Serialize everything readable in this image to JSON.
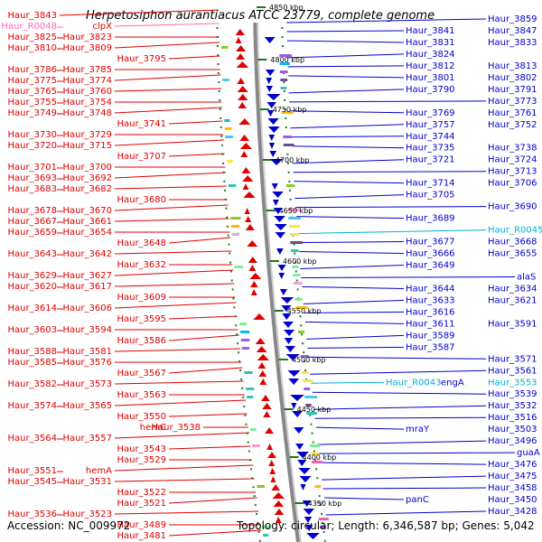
{
  "title": "Herpetosiphon aurantiacus ATCC 23779, complete genome",
  "footer": {
    "accession": "Accession: NC_009972",
    "summary": "Topology: circular; Length: 6,346,587 bp; Genes: 5,042"
  },
  "colors": {
    "left_strand": "#e00000",
    "right_strand": "#0000cc",
    "rna": "#ff69b4",
    "rna_right": "#00b0d8",
    "backbone": "#888888",
    "kbp_tick": "#1a7a1a"
  },
  "kbp_ticks": [
    "4850 kbp",
    "4800 kbp",
    "4750 kbp",
    "4700 kbp",
    "4650 kbp",
    "4600 kbp",
    "4550 kbp",
    "4500 kbp",
    "4450 kbp",
    "4400 kbp",
    "4350 kbp"
  ],
  "left_labels": [
    {
      "outer": "Haur_3843"
    },
    {
      "outer": "Haur_R0048",
      "inner": "clpX",
      "rna": true
    },
    {
      "outer": "Haur_3825",
      "inner": "Haur_3823"
    },
    {
      "outer": "Haur_3810",
      "inner": "Haur_3809"
    },
    {
      "inner": "Haur_3795"
    },
    {
      "outer": "Haur_3786",
      "inner": "Haur_3785"
    },
    {
      "outer": "Haur_3775",
      "inner": "Haur_3774"
    },
    {
      "outer": "Haur_3765",
      "inner": "Haur_3760"
    },
    {
      "outer": "Haur_3755",
      "inner": "Haur_3754"
    },
    {
      "outer": "Haur_3749",
      "inner": "Haur_3748"
    },
    {
      "inner": "Haur_3741"
    },
    {
      "outer": "Haur_3730",
      "inner": "Haur_3729"
    },
    {
      "outer": "Haur_3720",
      "inner": "Haur_3715"
    },
    {
      "inner": "Haur_3707"
    },
    {
      "outer": "Haur_3701",
      "inner": "Haur_3700"
    },
    {
      "outer": "Haur_3693",
      "inner": "Haur_3692"
    },
    {
      "outer": "Haur_3683",
      "inner": "Haur_3682"
    },
    {
      "inner": "Haur_3680"
    },
    {
      "outer": "Haur_3678",
      "inner": "Haur_3670"
    },
    {
      "outer": "Haur_3667",
      "inner": "Haur_3661"
    },
    {
      "outer": "Haur_3659",
      "inner": "Haur_3654"
    },
    {
      "inner": "Haur_3648"
    },
    {
      "outer": "Haur_3643",
      "inner": "Haur_3642"
    },
    {
      "inner": "Haur_3632"
    },
    {
      "outer": "Haur_3629",
      "inner": "Haur_3627"
    },
    {
      "outer": "Haur_3620",
      "inner": "Haur_3617"
    },
    {
      "inner": "Haur_3609"
    },
    {
      "outer": "Haur_3614",
      "inner": "Haur_3606"
    },
    {
      "inner": "Haur_3595"
    },
    {
      "outer": "Haur_3603",
      "inner": "Haur_3594"
    },
    {
      "inner": "Haur_3586"
    },
    {
      "outer": "Haur_3588",
      "inner": "Haur_3581"
    },
    {
      "outer": "Haur_3585",
      "inner": "Haur_3576"
    },
    {
      "inner": "Haur_3567"
    },
    {
      "outer": "Haur_3582",
      "inner": "Haur_3573"
    },
    {
      "inner": "Haur_3563"
    },
    {
      "outer": "Haur_3574",
      "inner": "Haur_3565"
    },
    {
      "inner": "Haur_3550"
    },
    {
      "inner": "hemC",
      "inner2": "Haur_3538"
    },
    {
      "outer": "Haur_3564",
      "inner": "Haur_3557"
    },
    {
      "inner": "Haur_3543"
    },
    {
      "inner": "Haur_3529"
    },
    {
      "outer": "Haur_3551",
      "inner": "hemA"
    },
    {
      "outer": "Haur_3545",
      "inner": "Haur_3531"
    },
    {
      "inner": "Haur_3522"
    },
    {
      "inner": "Haur_3521"
    },
    {
      "outer": "Haur_3536",
      "inner": "Haur_3523"
    },
    {
      "inner": "Haur_3489"
    },
    {
      "inner": "Haur_3481"
    }
  ],
  "right_labels": [
    {
      "outer": "Haur_3859"
    },
    {
      "inner": "Haur_3841",
      "outer": "Haur_3847"
    },
    {
      "inner": "Haur_3831",
      "outer": "Haur_3833"
    },
    {
      "inner": "Haur_3824"
    },
    {
      "inner": "Haur_3812",
      "outer": "Haur_3813"
    },
    {
      "inner": "Haur_3801",
      "outer": "Haur_3802"
    },
    {
      "inner": "Haur_3790",
      "outer": "Haur_3791"
    },
    {
      "outer": "Haur_3773"
    },
    {
      "inner": "Haur_3769",
      "outer": "Haur_3761"
    },
    {
      "inner": "Haur_3757",
      "outer": "Haur_3752"
    },
    {
      "inner": "Haur_3744"
    },
    {
      "inner": "Haur_3735",
      "outer": "Haur_3738"
    },
    {
      "inner": "Haur_3721",
      "outer": "Haur_3724"
    },
    {
      "outer": "Haur_3713"
    },
    {
      "inner": "Haur_3714",
      "outer": "Haur_3706"
    },
    {
      "inner": "Haur_3705"
    },
    {
      "outer": "Haur_3690"
    },
    {
      "inner": "Haur_3689"
    },
    {
      "outer": "Haur_R0045",
      "rna": true
    },
    {
      "inner": "Haur_3677",
      "outer": "Haur_3668"
    },
    {
      "inner": "Haur_3666",
      "outer": "Haur_3655"
    },
    {
      "inner": "Haur_3649"
    },
    {
      "outer": "alaS"
    },
    {
      "inner": "Haur_3644",
      "outer": "Haur_3634"
    },
    {
      "inner": "Haur_3633",
      "outer": "Haur_3621"
    },
    {
      "inner": "Haur_3616"
    },
    {
      "inner": "Haur_3611",
      "outer": "Haur_3591"
    },
    {
      "inner": "Haur_3589"
    },
    {
      "inner": "Haur_3587"
    },
    {
      "outer": "Haur_3571"
    },
    {
      "outer": "Haur_3561"
    },
    {
      "inner": "Haur_R0043",
      "rna": true,
      "inner2": "engA",
      "outer": "Haur_3553"
    },
    {
      "outer": "Haur_3539"
    },
    {
      "outer": "Haur_3532"
    },
    {
      "outer": "Haur_3516"
    },
    {
      "inner": "mraY",
      "outer": "Haur_3503"
    },
    {
      "outer": "Haur_3496"
    },
    {
      "outer": "guaA"
    },
    {
      "outer": "Haur_3476"
    },
    {
      "outer": "Haur_3475"
    },
    {
      "outer": "Haur_3458"
    },
    {
      "inner": "panC",
      "outer": "Haur_3450"
    },
    {
      "outer": "Haur_3428"
    }
  ]
}
